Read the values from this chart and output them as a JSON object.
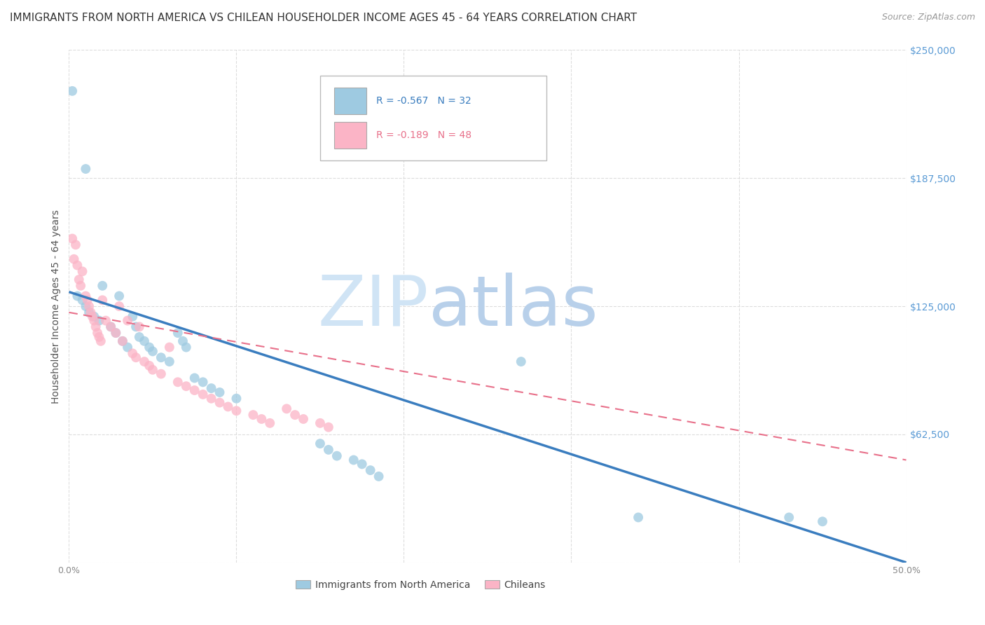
{
  "title": "IMMIGRANTS FROM NORTH AMERICA VS CHILEAN HOUSEHOLDER INCOME AGES 45 - 64 YEARS CORRELATION CHART",
  "source": "Source: ZipAtlas.com",
  "ylabel": "Householder Income Ages 45 - 64 years",
  "xlim": [
    0.0,
    0.5
  ],
  "ylim": [
    0,
    250000
  ],
  "xticks": [
    0.0,
    0.1,
    0.2,
    0.3,
    0.4,
    0.5
  ],
  "xticklabels": [
    "0.0%",
    "",
    "",
    "",
    "",
    "50.0%"
  ],
  "yticks": [
    0,
    62500,
    125000,
    187500,
    250000
  ],
  "yticklabels": [
    "",
    "$62,500",
    "$125,000",
    "$187,500",
    "$250,000"
  ],
  "grid_color": "#dddddd",
  "background_color": "#ffffff",
  "blue_scatter": [
    [
      0.002,
      230000
    ],
    [
      0.01,
      192000
    ],
    [
      0.005,
      130000
    ],
    [
      0.008,
      128000
    ],
    [
      0.01,
      125000
    ],
    [
      0.012,
      122000
    ],
    [
      0.015,
      120000
    ],
    [
      0.018,
      118000
    ],
    [
      0.02,
      135000
    ],
    [
      0.025,
      115000
    ],
    [
      0.028,
      112000
    ],
    [
      0.03,
      130000
    ],
    [
      0.032,
      108000
    ],
    [
      0.035,
      105000
    ],
    [
      0.038,
      120000
    ],
    [
      0.04,
      115000
    ],
    [
      0.042,
      110000
    ],
    [
      0.045,
      108000
    ],
    [
      0.048,
      105000
    ],
    [
      0.05,
      103000
    ],
    [
      0.055,
      100000
    ],
    [
      0.06,
      98000
    ],
    [
      0.065,
      112000
    ],
    [
      0.068,
      108000
    ],
    [
      0.07,
      105000
    ],
    [
      0.075,
      90000
    ],
    [
      0.08,
      88000
    ],
    [
      0.085,
      85000
    ],
    [
      0.09,
      83000
    ],
    [
      0.1,
      80000
    ],
    [
      0.15,
      58000
    ],
    [
      0.155,
      55000
    ],
    [
      0.16,
      52000
    ],
    [
      0.17,
      50000
    ],
    [
      0.175,
      48000
    ],
    [
      0.18,
      45000
    ],
    [
      0.185,
      42000
    ],
    [
      0.27,
      98000
    ],
    [
      0.34,
      22000
    ],
    [
      0.43,
      22000
    ],
    [
      0.45,
      20000
    ]
  ],
  "pink_scatter": [
    [
      0.002,
      158000
    ],
    [
      0.003,
      148000
    ],
    [
      0.004,
      155000
    ],
    [
      0.005,
      145000
    ],
    [
      0.006,
      138000
    ],
    [
      0.007,
      135000
    ],
    [
      0.008,
      142000
    ],
    [
      0.01,
      130000
    ],
    [
      0.011,
      128000
    ],
    [
      0.012,
      125000
    ],
    [
      0.013,
      122000
    ],
    [
      0.014,
      120000
    ],
    [
      0.015,
      118000
    ],
    [
      0.016,
      115000
    ],
    [
      0.017,
      112000
    ],
    [
      0.018,
      110000
    ],
    [
      0.019,
      108000
    ],
    [
      0.02,
      128000
    ],
    [
      0.022,
      118000
    ],
    [
      0.025,
      115000
    ],
    [
      0.028,
      112000
    ],
    [
      0.03,
      125000
    ],
    [
      0.032,
      108000
    ],
    [
      0.035,
      118000
    ],
    [
      0.038,
      102000
    ],
    [
      0.04,
      100000
    ],
    [
      0.042,
      115000
    ],
    [
      0.045,
      98000
    ],
    [
      0.048,
      96000
    ],
    [
      0.05,
      94000
    ],
    [
      0.055,
      92000
    ],
    [
      0.06,
      105000
    ],
    [
      0.065,
      88000
    ],
    [
      0.07,
      86000
    ],
    [
      0.075,
      84000
    ],
    [
      0.08,
      82000
    ],
    [
      0.085,
      80000
    ],
    [
      0.09,
      78000
    ],
    [
      0.095,
      76000
    ],
    [
      0.1,
      74000
    ],
    [
      0.11,
      72000
    ],
    [
      0.115,
      70000
    ],
    [
      0.12,
      68000
    ],
    [
      0.13,
      75000
    ],
    [
      0.135,
      72000
    ],
    [
      0.14,
      70000
    ],
    [
      0.15,
      68000
    ],
    [
      0.155,
      66000
    ]
  ],
  "blue_line_x": [
    0.0,
    0.5
  ],
  "blue_line_y": [
    132000,
    0
  ],
  "pink_line_x": [
    0.0,
    0.5
  ],
  "pink_line_y": [
    122000,
    50000
  ],
  "blue_color": "#3a7dbf",
  "blue_scatter_color": "#9ecae1",
  "pink_color": "#e8708a",
  "pink_scatter_color": "#fbb4c6",
  "title_fontsize": 11,
  "source_fontsize": 9,
  "ylabel_fontsize": 10,
  "tick_fontsize": 9,
  "watermark_zip_color": "#c5d8ee",
  "watermark_atlas_color": "#c5d8ee"
}
